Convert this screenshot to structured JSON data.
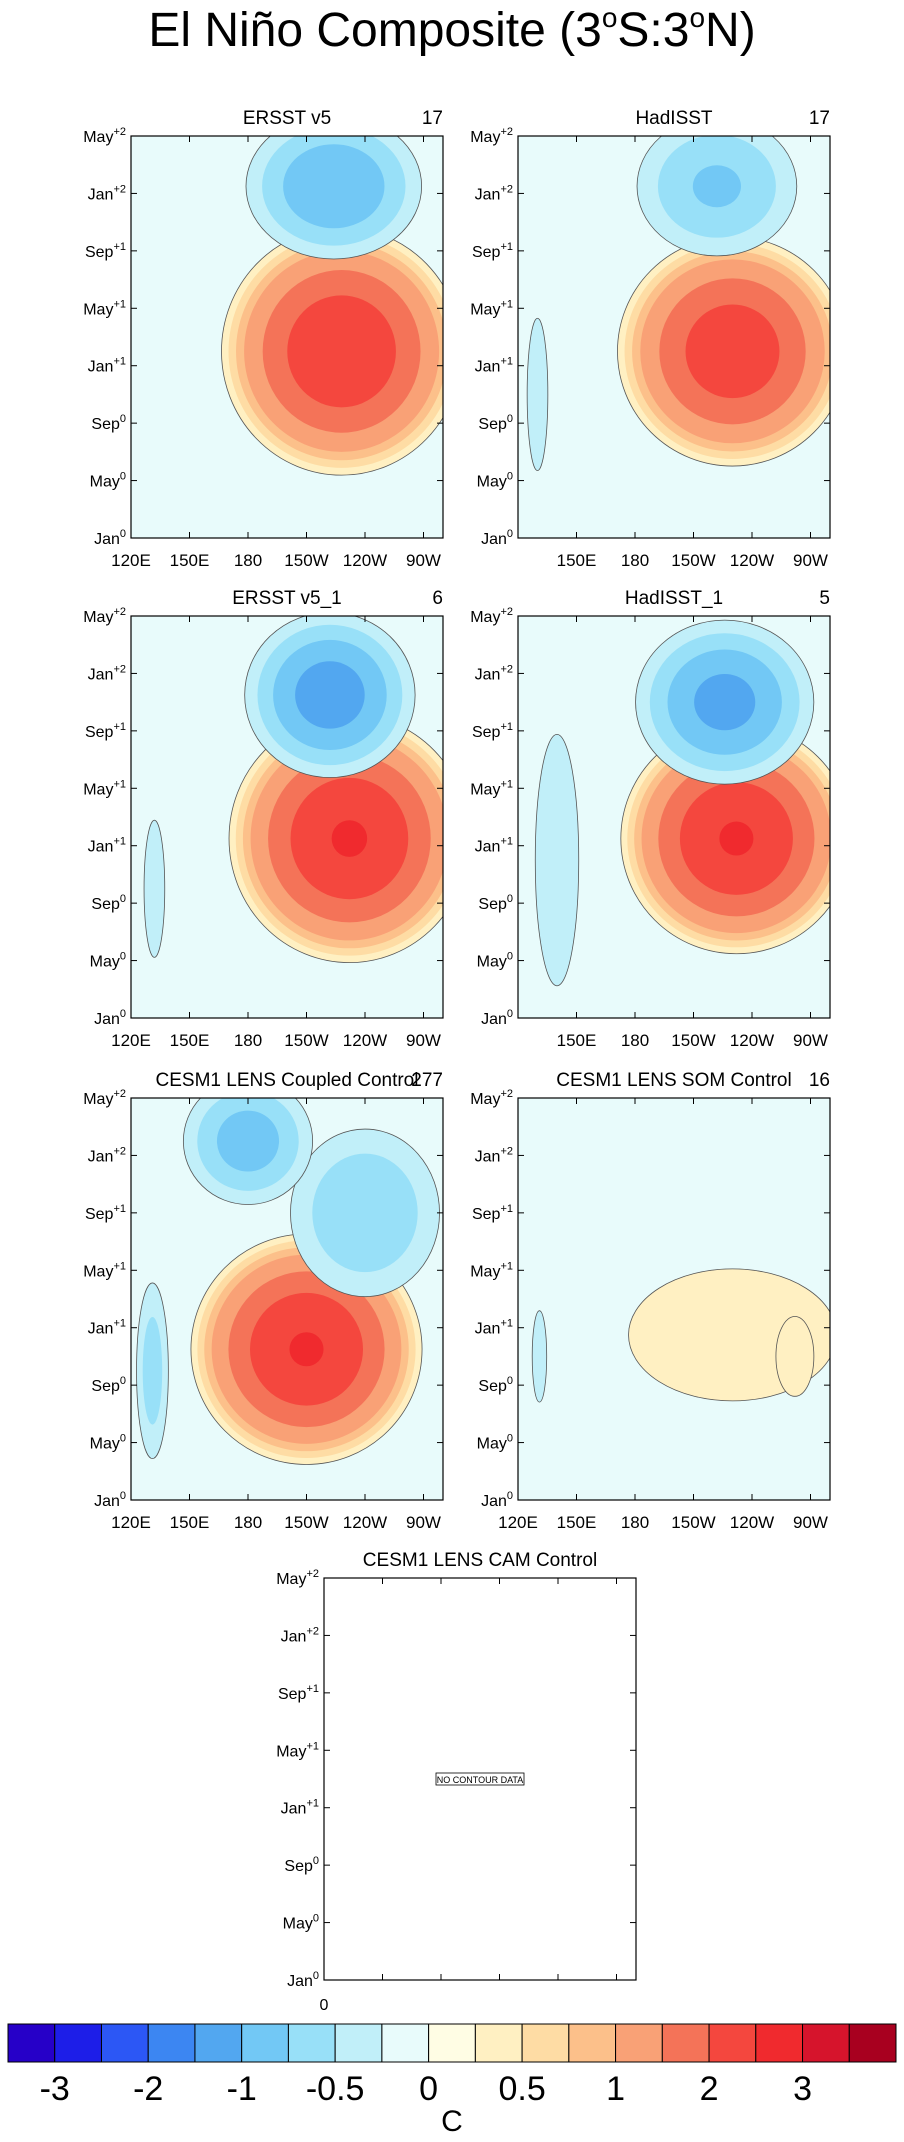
{
  "chart_data": {
    "type": "heatmap",
    "title": {
      "main": "El Niño Composite (3",
      "s1": "o",
      "mid": "S:3",
      "s2": "o",
      "end": "N)"
    },
    "xaxis": {
      "ticks": [
        {
          "label": "120E",
          "lon": 120
        },
        {
          "label": "150E",
          "lon": 150
        },
        {
          "label": "180",
          "lon": 180
        },
        {
          "label": "150W",
          "lon": 210
        },
        {
          "label": "120W",
          "lon": 240
        },
        {
          "label": "90W",
          "lon": 270
        }
      ],
      "range": [
        120,
        280
      ]
    },
    "yaxis": {
      "ticks": [
        {
          "base": "Jan",
          "sup": "0",
          "month": 0
        },
        {
          "base": "May",
          "sup": "0",
          "month": 4
        },
        {
          "base": "Sep",
          "sup": "0",
          "month": 8
        },
        {
          "base": "Jan",
          "sup": "+1",
          "month": 12
        },
        {
          "base": "May",
          "sup": "+1",
          "month": 16
        },
        {
          "base": "Sep",
          "sup": "+1",
          "month": 20
        },
        {
          "base": "Jan",
          "sup": "+2",
          "month": 24
        },
        {
          "base": "May",
          "sup": "+2",
          "month": 28
        }
      ],
      "range": [
        0,
        28
      ]
    },
    "panels": [
      {
        "title": "ERSST v5",
        "count": "17",
        "features": [
          {
            "center": [
              228,
              13
            ],
            "halfwidth": [
              50,
              7
            ],
            "amp": 2.4
          },
          {
            "center": [
              224,
              24.5
            ],
            "halfwidth": [
              40,
              4.5
            ],
            "amp": -0.95
          },
          {
            "center": [
              126,
              8
            ],
            "halfwidth": [
              7,
              9
            ],
            "amp": -0.2
          }
        ]
      },
      {
        "title": "HadISST",
        "count": "17",
        "features": [
          {
            "center": [
              230,
              13
            ],
            "halfwidth": [
              48,
              6.5
            ],
            "amp": 2.3
          },
          {
            "center": [
              222,
              24.5
            ],
            "halfwidth": [
              38,
              4.5
            ],
            "amp": -0.75
          },
          {
            "center": [
              130,
              10
            ],
            "halfwidth": [
              10,
              10
            ],
            "amp": -0.25
          }
        ]
      },
      {
        "title": "ERSST v5_1",
        "count": "6",
        "features": [
          {
            "center": [
              232,
              12.5
            ],
            "halfwidth": [
              50,
              7
            ],
            "amp": 2.5
          },
          {
            "center": [
              222,
              22.5
            ],
            "halfwidth": [
              38,
              5
            ],
            "amp": -1.1
          },
          {
            "center": [
              132,
              9
            ],
            "halfwidth": [
              10,
              9
            ],
            "amp": -0.25
          }
        ]
      },
      {
        "title": "HadISST_1",
        "count": "5",
        "features": [
          {
            "center": [
              232,
              12.5
            ],
            "halfwidth": [
              48,
              6.5
            ],
            "amp": 2.5
          },
          {
            "center": [
              226,
              22
            ],
            "halfwidth": [
              40,
              5
            ],
            "amp": -1.05
          },
          {
            "center": [
              140,
              11
            ],
            "halfwidth": [
              14,
              11
            ],
            "amp": -0.35
          }
        ]
      },
      {
        "title": "CESM1 LENS Coupled Control",
        "count": "277",
        "features": [
          {
            "center": [
              210,
              10.5
            ],
            "halfwidth": [
              48,
              6.5
            ],
            "amp": 2.5
          },
          {
            "center": [
              240,
              20
            ],
            "halfwidth": [
              36,
              5.5
            ],
            "amp": -0.7
          },
          {
            "center": [
              180,
              25
            ],
            "halfwidth": [
              30,
              4
            ],
            "amp": -0.85
          },
          {
            "center": [
              131,
              9
            ],
            "halfwidth": [
              8,
              6
            ],
            "amp": -0.6
          }
        ]
      },
      {
        "title": "CESM1 LENS SOM Control",
        "count": "16",
        "features": [
          {
            "center": [
              230,
              11.5
            ],
            "halfwidth": [
              58,
              5
            ],
            "amp": 0.45
          },
          {
            "center": [
              262,
              10
            ],
            "halfwidth": [
              14,
              4
            ],
            "amp": 0.3
          },
          {
            "center": [
              131,
              10
            ],
            "halfwidth": [
              7,
              6
            ],
            "amp": -0.25
          }
        ]
      },
      {
        "title": "CESM1 LENS CAM Control",
        "count": "",
        "nodata": "NO CONTOUR DATA",
        "extra_xlabel": "0",
        "features": []
      }
    ],
    "levels": [
      -3,
      -2.5,
      -2,
      -1.5,
      -1,
      -0.75,
      -0.5,
      -0.25,
      0,
      0.25,
      0.5,
      0.75,
      1,
      1.5,
      2,
      2.5,
      3
    ],
    "colorbar": {
      "colors": [
        "#2600c8",
        "#1d1ee8",
        "#2c57f5",
        "#3c86f2",
        "#52a7f0",
        "#72c8f5",
        "#98e0f8",
        "#c1eff9",
        "#e8fbfb",
        "#fffde4",
        "#fff0c2",
        "#fedca4",
        "#fcc08a",
        "#f9a176",
        "#f47358",
        "#f4473e",
        "#f02a2e",
        "#d6142c",
        "#a8001f"
      ],
      "labels": [
        {
          "text": "-3",
          "index": 1
        },
        {
          "text": "-2",
          "index": 3
        },
        {
          "text": "-1",
          "index": 5
        },
        {
          "text": "-0.5",
          "index": 7
        },
        {
          "text": "0",
          "index": 9
        },
        {
          "text": "0.5",
          "index": 11
        },
        {
          "text": "1",
          "index": 13
        },
        {
          "text": "2",
          "index": 15
        },
        {
          "text": "3",
          "index": 17
        }
      ],
      "units": "C"
    }
  }
}
